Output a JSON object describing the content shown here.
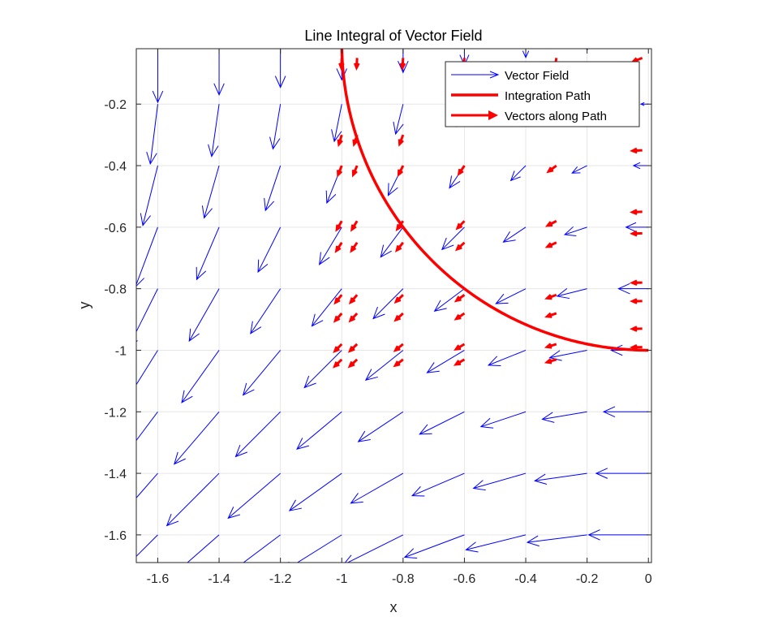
{
  "chart_data": {
    "type": "quiver",
    "title": "Line Integral of Vector Field",
    "xlabel": "x",
    "ylabel": "y",
    "xlim": [
      -1.67,
      0.01
    ],
    "ylim": [
      -1.69,
      -0.02
    ],
    "grid": true,
    "xticks": [
      -1.6,
      -1.4,
      -1.2,
      -1,
      -0.8,
      -0.6,
      -0.4,
      -0.2,
      0
    ],
    "xtick_labels": [
      "-1.6",
      "-1.4",
      "-1.2",
      "-1",
      "-0.8",
      "-0.6",
      "-0.4",
      "-0.2",
      "0"
    ],
    "yticks": [
      -0.2,
      -0.4,
      -0.6,
      -0.8,
      -1,
      -1.2,
      -1.4,
      -1.6
    ],
    "ytick_labels": [
      "-0.2",
      "-0.4",
      "-0.6",
      "-0.8",
      "-1",
      "-1.2",
      "-1.4",
      "-1.6"
    ],
    "legend": {
      "placement": "top-right",
      "entries": [
        "Vector Field",
        "Integration Path",
        "Vectors along Path"
      ]
    },
    "colors": {
      "vector_field": "#0000ff",
      "path": "#ff0000",
      "grid": "#e6e6e6"
    },
    "series": [
      {
        "name": "Vector Field",
        "kind": "quiver",
        "grid_x": [
          -1.6,
          -1.4,
          -1.2,
          -1.0,
          -0.8,
          -0.6,
          -0.4,
          -0.2,
          0.0
        ],
        "grid_y": [
          -0.0,
          -0.2,
          -0.4,
          -0.6,
          -0.8,
          -1.0,
          -1.2,
          -1.4,
          -1.6
        ],
        "field": "u = y, v = x"
      },
      {
        "name": "Integration Path",
        "kind": "line",
        "description": "quarter circle, radius 1",
        "theta_range_deg": [
          180,
          270
        ],
        "center": [
          0,
          0
        ],
        "radius": 1
      },
      {
        "name": "Vectors along Path",
        "kind": "quiver",
        "field": "u = y, v = x",
        "points": [
          [
            -1.0,
            -0.05
          ],
          [
            -0.95,
            -0.05
          ],
          [
            -0.8,
            -0.05
          ],
          [
            -0.6,
            -0.05
          ],
          [
            -0.3,
            -0.05
          ],
          [
            -0.02,
            -0.05
          ],
          [
            -1.0,
            -0.3
          ],
          [
            -0.95,
            -0.3
          ],
          [
            -0.8,
            -0.3
          ],
          [
            -1.0,
            -0.4
          ],
          [
            -0.95,
            -0.4
          ],
          [
            -0.8,
            -0.4
          ],
          [
            -0.6,
            -0.4
          ],
          [
            -0.3,
            -0.4
          ],
          [
            -0.02,
            -0.35
          ],
          [
            -1.0,
            -0.58
          ],
          [
            -0.95,
            -0.58
          ],
          [
            -0.8,
            -0.58
          ],
          [
            -0.6,
            -0.58
          ],
          [
            -0.3,
            -0.58
          ],
          [
            -0.02,
            -0.55
          ],
          [
            -1.0,
            -0.65
          ],
          [
            -0.95,
            -0.65
          ],
          [
            -0.8,
            -0.65
          ],
          [
            -0.6,
            -0.65
          ],
          [
            -0.3,
            -0.65
          ],
          [
            -0.02,
            -0.62
          ],
          [
            -1.0,
            -0.82
          ],
          [
            -0.95,
            -0.82
          ],
          [
            -0.8,
            -0.82
          ],
          [
            -0.6,
            -0.82
          ],
          [
            -0.3,
            -0.82
          ],
          [
            -0.02,
            -0.78
          ],
          [
            -1.0,
            -0.88
          ],
          [
            -0.95,
            -0.88
          ],
          [
            -0.8,
            -0.88
          ],
          [
            -0.6,
            -0.88
          ],
          [
            -0.3,
            -0.88
          ],
          [
            -0.02,
            -0.84
          ],
          [
            -1.0,
            -0.98
          ],
          [
            -0.95,
            -0.98
          ],
          [
            -0.8,
            -0.98
          ],
          [
            -0.6,
            -0.98
          ],
          [
            -0.3,
            -0.98
          ],
          [
            -0.02,
            -0.93
          ],
          [
            -1.0,
            -1.03
          ],
          [
            -0.95,
            -1.03
          ],
          [
            -0.8,
            -1.03
          ],
          [
            -0.6,
            -1.03
          ],
          [
            -0.3,
            -1.03
          ],
          [
            -0.02,
            -0.99
          ]
        ]
      }
    ]
  }
}
